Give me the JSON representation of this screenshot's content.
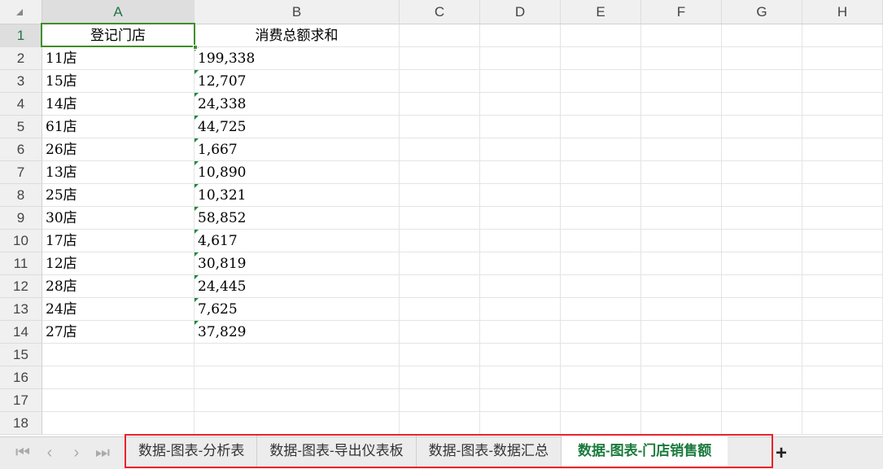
{
  "columns": [
    "A",
    "B",
    "C",
    "D",
    "E",
    "F",
    "G",
    "H"
  ],
  "rows": [
    "1",
    "2",
    "3",
    "4",
    "5",
    "6",
    "7",
    "8",
    "9",
    "10",
    "11",
    "12",
    "13",
    "14",
    "15",
    "16",
    "17",
    "18"
  ],
  "selected_cell": "A1",
  "header": {
    "store": "登记门店",
    "total": "消费总额求和"
  },
  "data": [
    {
      "store": "11店",
      "total": "199,338"
    },
    {
      "store": "15店",
      "total": "12,707"
    },
    {
      "store": "14店",
      "total": "24,338"
    },
    {
      "store": "61店",
      "total": "44,725"
    },
    {
      "store": "26店",
      "total": "1,667"
    },
    {
      "store": "13店",
      "total": "10,890"
    },
    {
      "store": "25店",
      "total": "10,321"
    },
    {
      "store": "30店",
      "total": "58,852"
    },
    {
      "store": "17店",
      "total": "4,617"
    },
    {
      "store": "12店",
      "total": "30,819"
    },
    {
      "store": "28店",
      "total": "24,445"
    },
    {
      "store": "24店",
      "total": "7,625"
    },
    {
      "store": "27店",
      "total": "37,829"
    }
  ],
  "nav": {
    "first": "|◁",
    "prev": "‹",
    "next": "›",
    "last": "▷|"
  },
  "sheet_tabs": [
    {
      "label": "数据-图表-分析表",
      "active": false
    },
    {
      "label": "数据-图表-导出仪表板",
      "active": false
    },
    {
      "label": "数据-图表-数据汇总",
      "active": false
    },
    {
      "label": "数据-图表-门店销售额",
      "active": true
    }
  ],
  "add_sheet": "+",
  "colors": {
    "accent": "#217346",
    "selection": "#3f8f2a",
    "highlight_border": "#e8232a"
  }
}
